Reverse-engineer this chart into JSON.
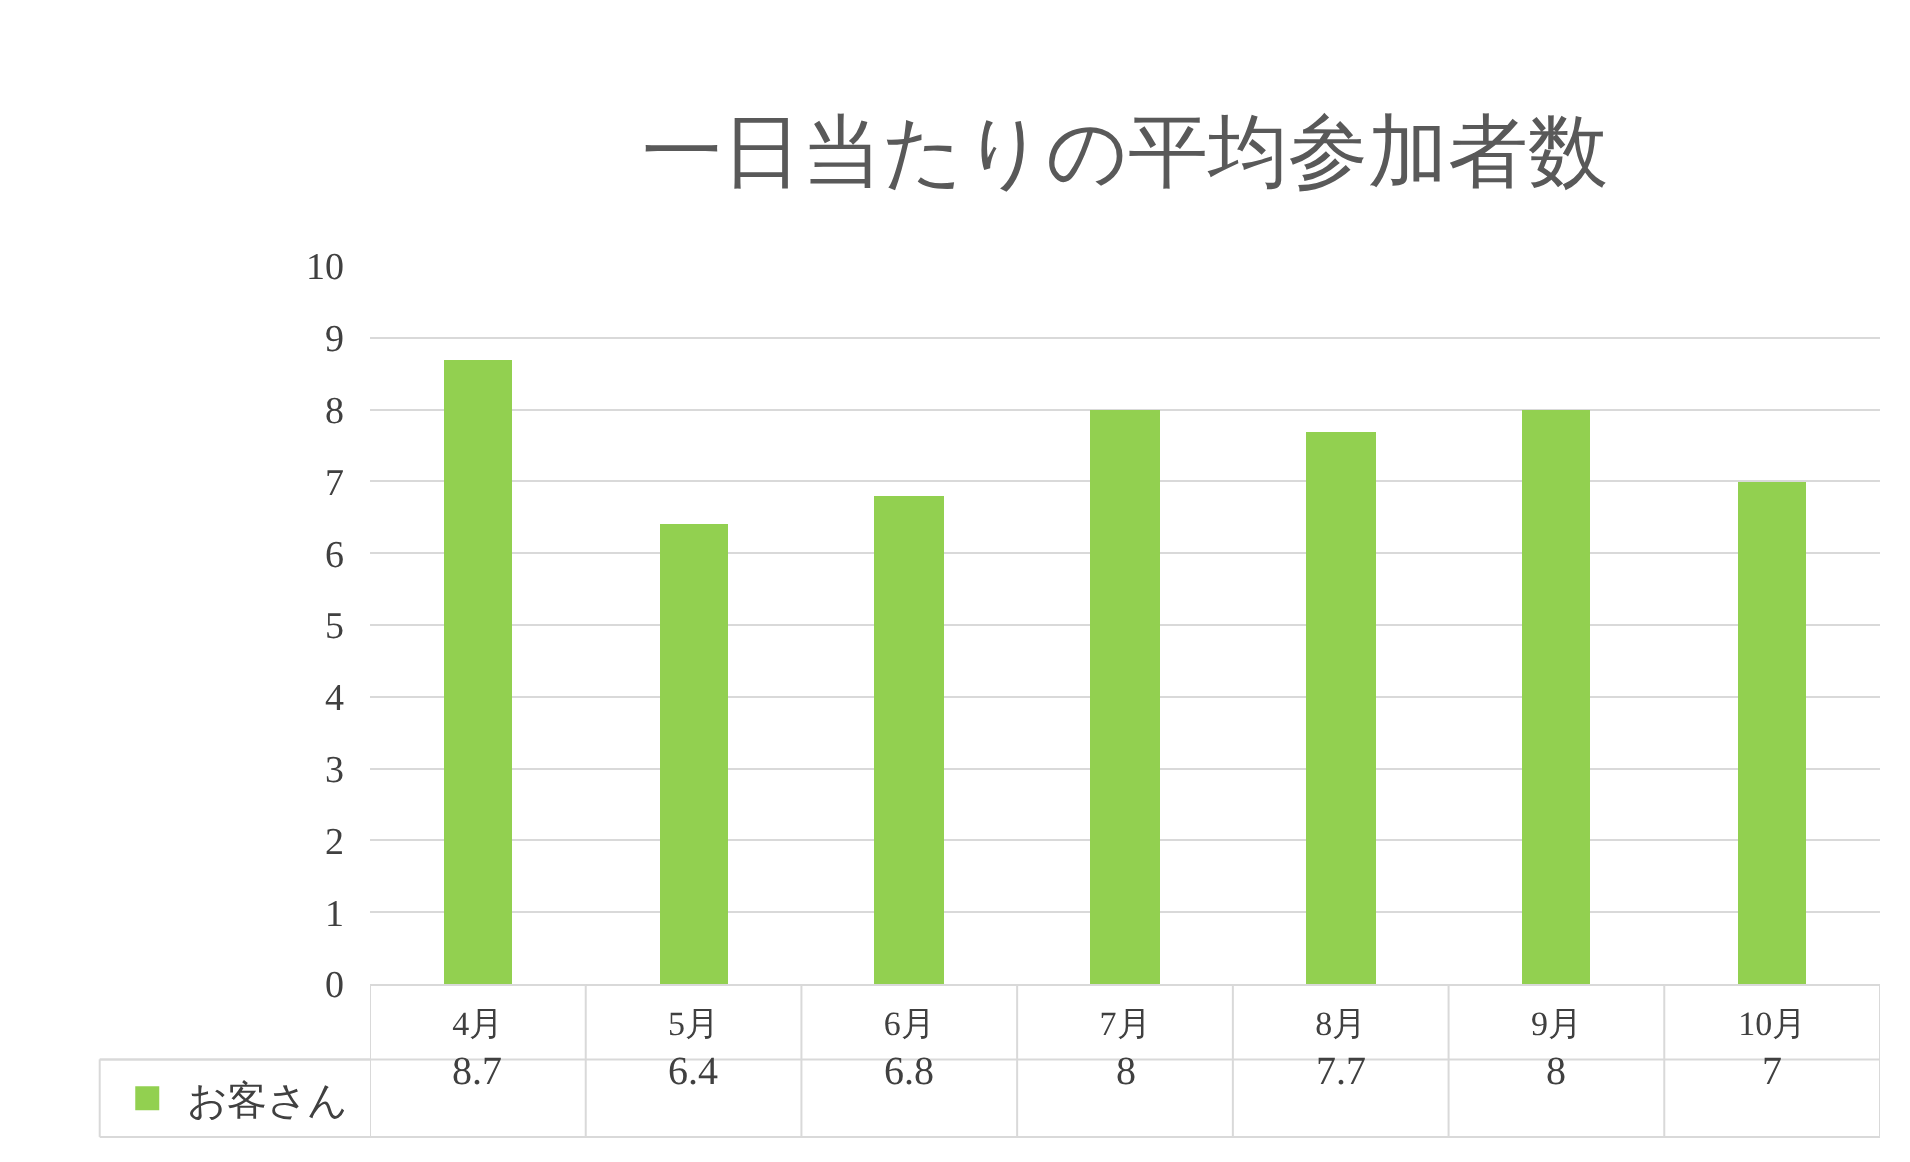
{
  "chart_data": {
    "type": "bar",
    "title": "一日当たりの平均参加者数",
    "categories": [
      "4月",
      "5月",
      "6月",
      "7月",
      "8月",
      "9月",
      "10月"
    ],
    "series": [
      {
        "name": "お客さん",
        "color": "#92d050",
        "values": [
          8.7,
          6.4,
          6.8,
          8,
          7.7,
          8,
          7
        ]
      }
    ],
    "ylim": [
      0,
      10
    ],
    "yticks": [
      0,
      1,
      2,
      3,
      4,
      5,
      6,
      7,
      8,
      9,
      10
    ],
    "grid": "y",
    "legend": "bottom left",
    "data_labels": true
  }
}
